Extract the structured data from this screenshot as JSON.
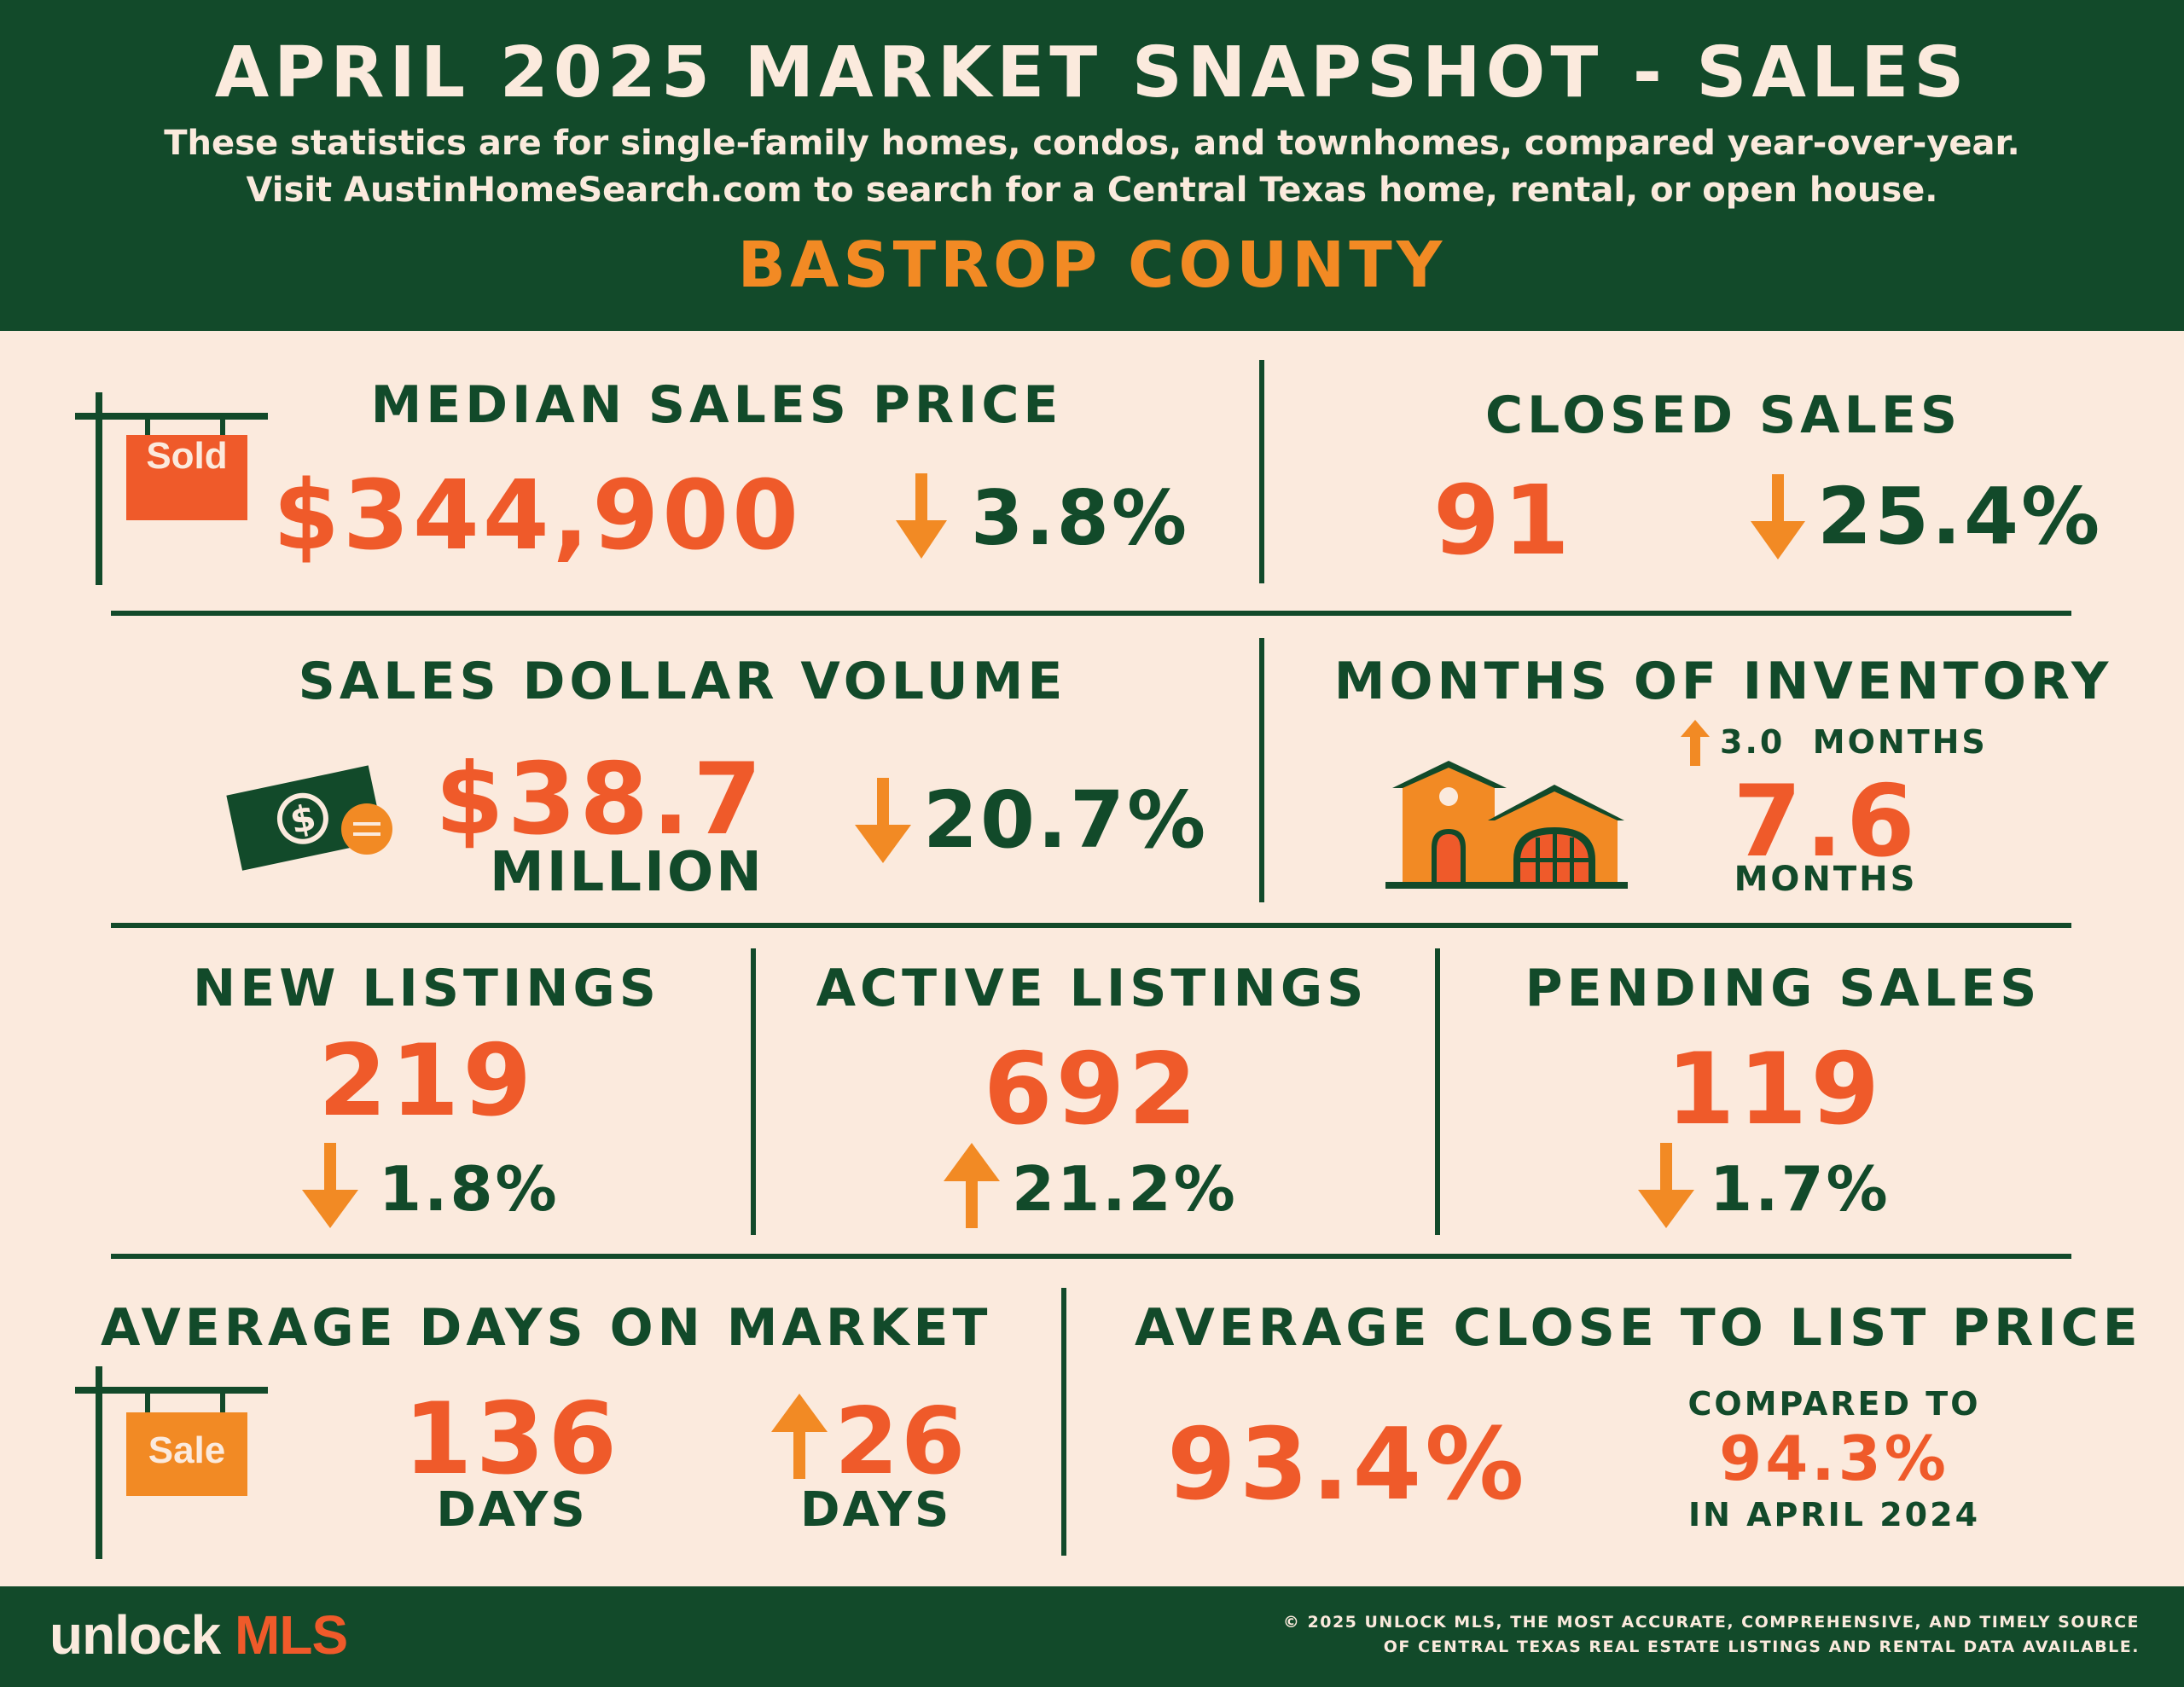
{
  "header": {
    "title": "APRIL 2025 MARKET SNAPSHOT - SALES",
    "subtitle_line1": "These statistics are for single-family homes, condos, and townhomes, compared year-over-year.",
    "subtitle_line2": "Visit AustinHomeSearch.com to search for a Central Texas home, rental, or open house.",
    "county": "BASTROP COUNTY"
  },
  "median_sales_price": {
    "label": "MEDIAN SALES PRICE",
    "sign_text": "Sold",
    "value": "$344,900",
    "change": "3.8%",
    "direction": "down"
  },
  "closed_sales": {
    "label": "CLOSED SALES",
    "value": "91",
    "change": "25.4%",
    "direction": "down"
  },
  "sales_dollar_volume": {
    "label": "SALES DOLLAR VOLUME",
    "value": "$38.7",
    "unit": "MILLION",
    "change": "20.7%",
    "direction": "down"
  },
  "months_of_inventory": {
    "label": "MONTHS OF INVENTORY",
    "change": "3.0  MONTHS",
    "direction": "up",
    "value": "7.6",
    "unit": "MONTHS"
  },
  "new_listings": {
    "label": "NEW LISTINGS",
    "value": "219",
    "change": "1.8%",
    "direction": "down"
  },
  "active_listings": {
    "label": "ACTIVE LISTINGS",
    "value": "692",
    "change": "21.2%",
    "direction": "up"
  },
  "pending_sales": {
    "label": "PENDING SALES",
    "value": "119",
    "change": "1.7%",
    "direction": "down"
  },
  "avg_days_on_market": {
    "label": "AVERAGE DAYS ON MARKET",
    "sign_text": "Sale",
    "value": "136",
    "value_unit": "DAYS",
    "change": "26",
    "change_unit": "DAYS",
    "direction": "up"
  },
  "avg_close_to_list": {
    "label": "AVERAGE CLOSE TO LIST PRICE",
    "value": "93.4%",
    "compared_label": "COMPARED TO",
    "compared_value": "94.3%",
    "compared_period": "IN APRIL 2024"
  },
  "footer": {
    "brand_unlock": "unlock",
    "brand_mls": "MLS",
    "copyright_line1": "© 2025 UNLOCK MLS, THE MOST ACCURATE, COMPREHENSIVE, AND TIMELY SOURCE",
    "copyright_line2": "OF CENTRAL TEXAS REAL ESTATE LISTINGS AND RENTAL DATA AVAILABLE."
  },
  "colors": {
    "dark_green": "#124a2a",
    "orange_red": "#ef5a2a",
    "amber": "#f28a24",
    "cream": "#fbeadd"
  }
}
